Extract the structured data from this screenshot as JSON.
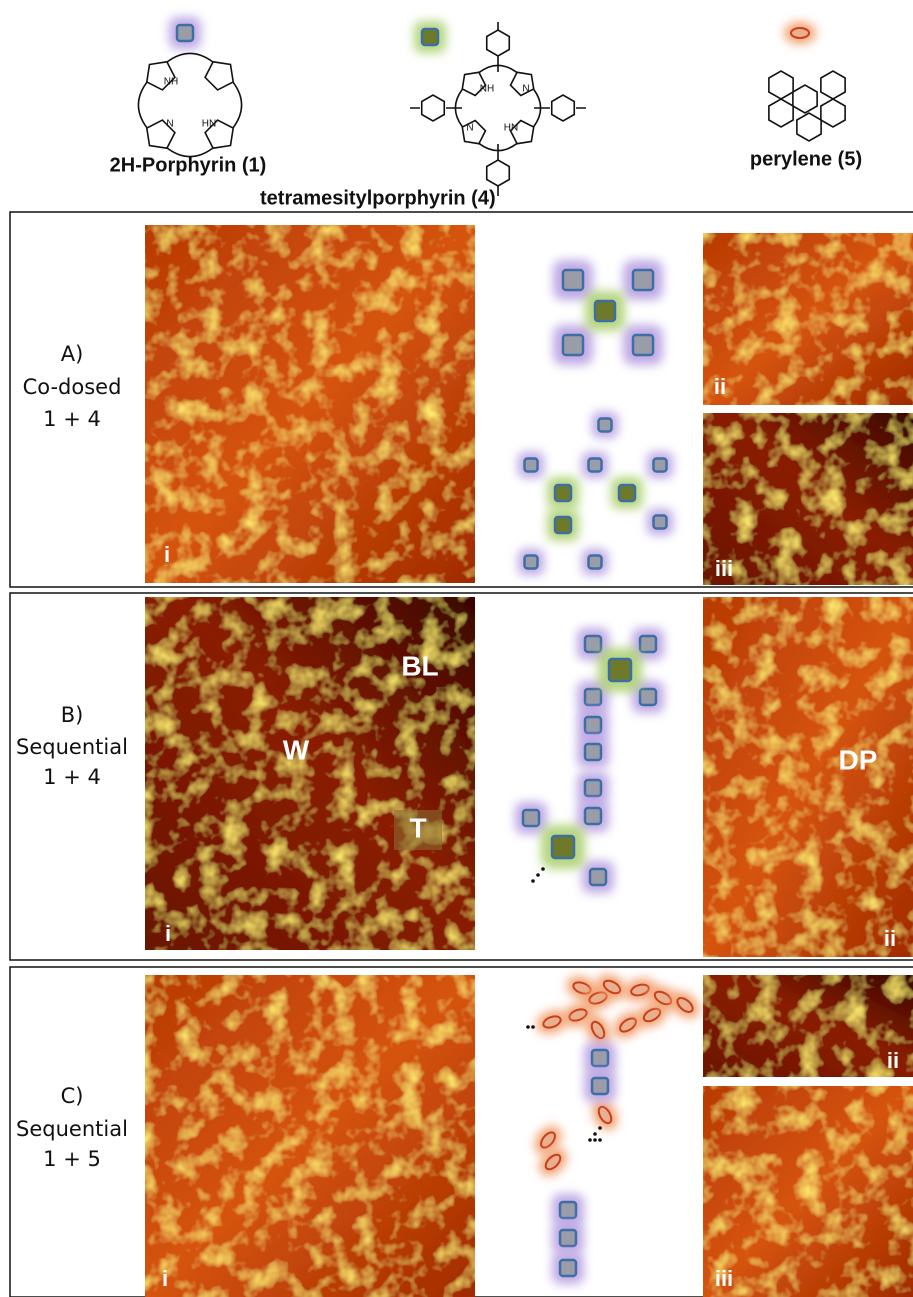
{
  "molecules": [
    {
      "name": "2H-Porphyrin (1)",
      "atoms": [
        "NH",
        "N",
        "HN"
      ]
    },
    {
      "name": "tetramesitylporphyrin (4)",
      "atoms": [
        "NH",
        "N",
        "N",
        "HN"
      ]
    },
    {
      "name": "perylene (5)"
    }
  ],
  "panels": [
    {
      "letter": "A)",
      "lines": [
        "Co-dosed",
        "1 + 4"
      ],
      "image_labels": [
        "i",
        "ii",
        "iii"
      ]
    },
    {
      "letter": "B)",
      "lines": [
        "Sequential",
        "1 + 4"
      ],
      "image_labels": [
        "i",
        "ii"
      ],
      "feature_labels": [
        "BL",
        "W",
        "T",
        "DP"
      ]
    },
    {
      "letter": "C)",
      "lines": [
        "Sequential",
        "1 + 5"
      ],
      "image_labels": [
        "i",
        "ii",
        "iii"
      ]
    }
  ]
}
